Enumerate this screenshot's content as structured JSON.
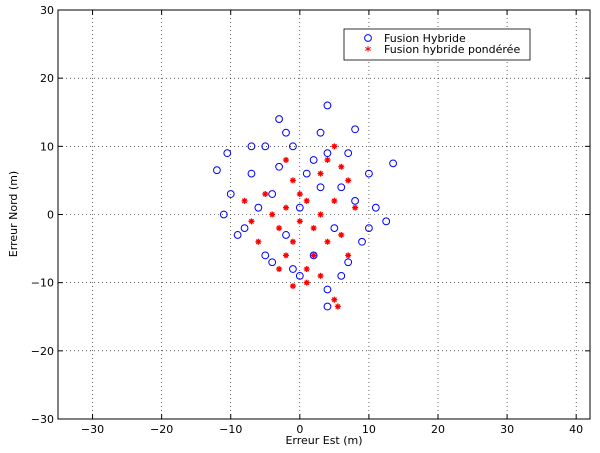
{
  "chart_data": {
    "type": "scatter",
    "title": "",
    "xlabel": "Erreur Est (m)",
    "ylabel": "Erreur Nord (m)",
    "xlim": [
      -35,
      42
    ],
    "ylim": [
      -30,
      30
    ],
    "xticks": [
      -30,
      -20,
      -10,
      0,
      10,
      20,
      30,
      40
    ],
    "yticks": [
      -30,
      -20,
      -10,
      0,
      10,
      20,
      30
    ],
    "grid": true,
    "legend_position": "top-right",
    "series": [
      {
        "name": "Fusion Hybride",
        "marker": "circle",
        "color": "#0000ff",
        "points": [
          [
            0,
            1
          ],
          [
            -4,
            3
          ],
          [
            3,
            4
          ],
          [
            -2,
            -3
          ],
          [
            5,
            -2
          ],
          [
            1,
            6
          ],
          [
            -6,
            1
          ],
          [
            6,
            4
          ],
          [
            -3,
            7
          ],
          [
            2,
            -6
          ],
          [
            8,
            2
          ],
          [
            -8,
            -2
          ],
          [
            4,
            9
          ],
          [
            -1,
            10
          ],
          [
            9,
            -4
          ],
          [
            -7,
            6
          ],
          [
            -10,
            3
          ],
          [
            10,
            6
          ],
          [
            11,
            1
          ],
          [
            -5,
            -6
          ],
          [
            7,
            -7
          ],
          [
            -2,
            12
          ],
          [
            3,
            12
          ],
          [
            -3,
            14
          ],
          [
            4,
            16
          ],
          [
            -12,
            6.5
          ],
          [
            -10.5,
            9
          ],
          [
            12.5,
            -1
          ],
          [
            13.5,
            7.5
          ],
          [
            4,
            -11
          ],
          [
            4,
            -13.5
          ],
          [
            0,
            -9
          ],
          [
            -4,
            -7
          ],
          [
            -9,
            -3
          ],
          [
            7,
            9
          ],
          [
            10,
            -2
          ],
          [
            -7,
            10
          ],
          [
            8,
            12.5
          ],
          [
            -11,
            0
          ],
          [
            -1,
            -8
          ],
          [
            2,
            8
          ],
          [
            -5,
            10
          ],
          [
            6,
            -9
          ]
        ]
      },
      {
        "name": "Fusion hybride pondérée",
        "marker": "star",
        "color": "#ff0000",
        "points": [
          [
            0,
            -1
          ],
          [
            -2,
            1
          ],
          [
            2,
            -2
          ],
          [
            1,
            2
          ],
          [
            -1,
            -4
          ],
          [
            3,
            0
          ],
          [
            -3,
            -2
          ],
          [
            0,
            3
          ],
          [
            4,
            -4
          ],
          [
            -4,
            0
          ],
          [
            2,
            -6
          ],
          [
            -2,
            -6
          ],
          [
            5,
            2
          ],
          [
            -5,
            3
          ],
          [
            1,
            -8
          ],
          [
            -1,
            5
          ],
          [
            6,
            -3
          ],
          [
            -6,
            -4
          ],
          [
            3,
            6
          ],
          [
            4,
            8
          ],
          [
            5,
            10
          ],
          [
            7,
            5
          ],
          [
            7,
            -6
          ],
          [
            -7,
            -1
          ],
          [
            8,
            1
          ],
          [
            -8,
            2
          ],
          [
            1,
            -10
          ],
          [
            -1,
            -10.5
          ],
          [
            5,
            -12.5
          ],
          [
            5.5,
            -13.5
          ],
          [
            -2,
            8
          ],
          [
            3,
            -9
          ],
          [
            -3,
            -8
          ],
          [
            6,
            7
          ]
        ]
      }
    ]
  }
}
